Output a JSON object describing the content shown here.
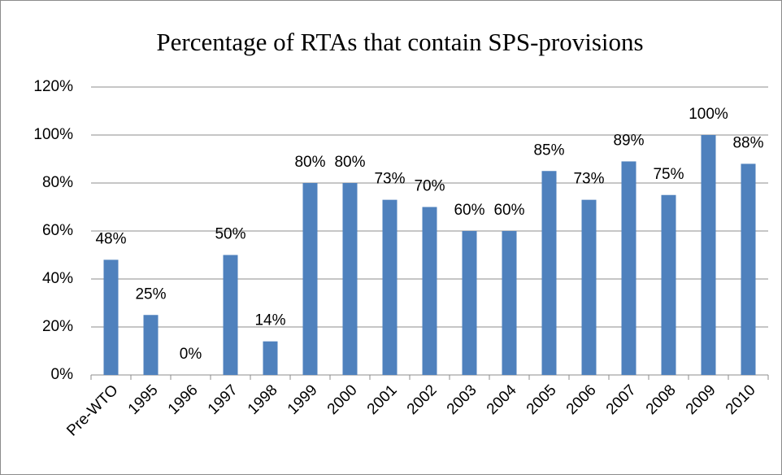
{
  "chart_data": {
    "type": "bar",
    "title": "Percentage of RTAs that contain SPS-provisions",
    "categories": [
      "Pre-WTO",
      "1995",
      "1996",
      "1997",
      "1998",
      "1999",
      "2000",
      "2001",
      "2002",
      "2003",
      "2004",
      "2005",
      "2006",
      "2007",
      "2008",
      "2009",
      "2010"
    ],
    "values": [
      48,
      25,
      0,
      50,
      14,
      80,
      80,
      73,
      70,
      60,
      60,
      85,
      73,
      89,
      75,
      100,
      88
    ],
    "value_labels": [
      "48%",
      "25%",
      "0%",
      "50%",
      "14%",
      "80%",
      "80%",
      "73%",
      "70%",
      "60%",
      "60%",
      "85%",
      "73%",
      "89%",
      "75%",
      "100%",
      "88%"
    ],
    "color": "#4f81bd",
    "ylim": [
      0,
      120
    ],
    "yticks": [
      {
        "value": 0,
        "label": "0%"
      },
      {
        "value": 20,
        "label": "20%"
      },
      {
        "value": 40,
        "label": "40%"
      },
      {
        "value": 60,
        "label": "60%"
      },
      {
        "value": 80,
        "label": "80%"
      },
      {
        "value": 100,
        "label": "100%"
      },
      {
        "value": 120,
        "label": "120%"
      }
    ],
    "grid": true
  }
}
